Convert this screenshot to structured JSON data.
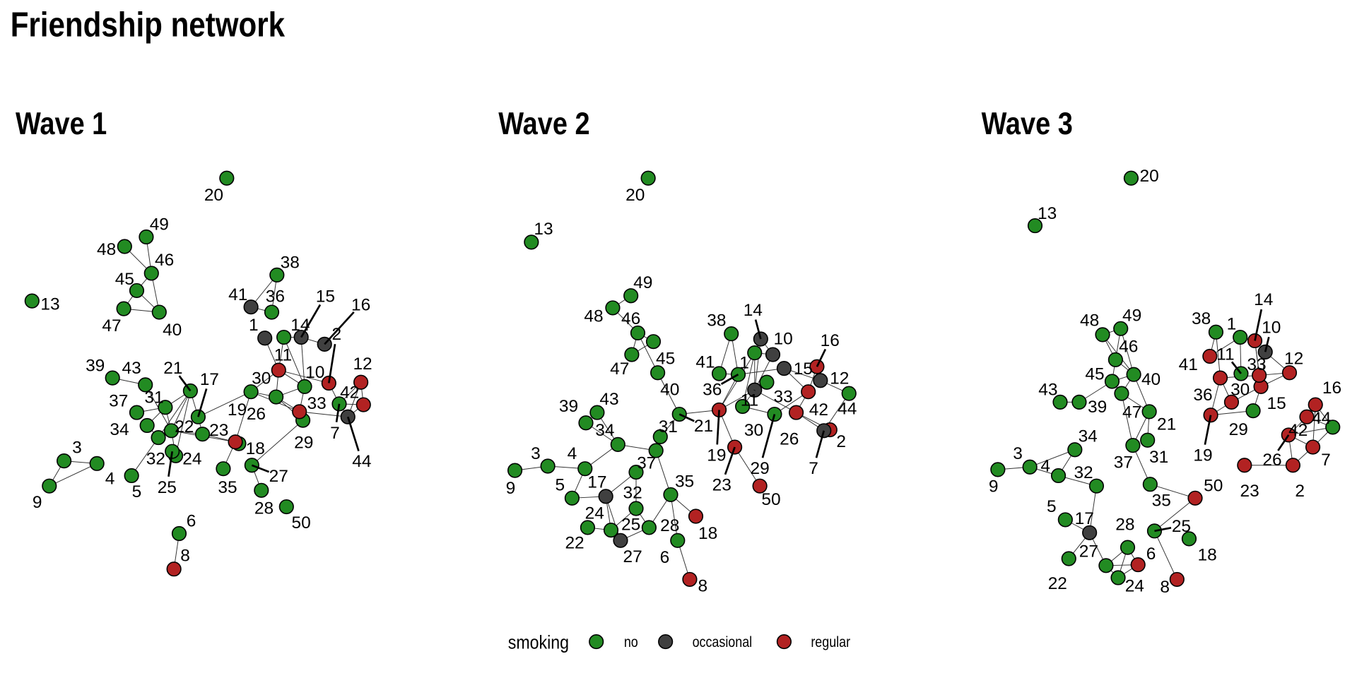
{
  "title": "Friendship network",
  "colors": {
    "no": "#228B22",
    "occasional": "#404040",
    "regular": "#B22222"
  },
  "legend": {
    "title": "smoking",
    "items": [
      {
        "key": "no",
        "label": "no"
      },
      {
        "key": "occasional",
        "label": "occasional"
      },
      {
        "key": "regular",
        "label": "regular"
      }
    ]
  },
  "waves": [
    {
      "title": "Wave 1",
      "nodes": {
        "1": "occasional",
        "2": "regular",
        "3": "no",
        "4": "no",
        "5": "no",
        "6": "no",
        "7": "no",
        "8": "regular",
        "9": "no",
        "10": "no",
        "11": "regular",
        "12": "regular",
        "13": "no",
        "14": "no",
        "15": "occasional",
        "16": "occasional",
        "17": "no",
        "18": "no",
        "19": "regular",
        "20": "no",
        "21": "no",
        "22": "no",
        "23": "no",
        "24": "no",
        "25": "no",
        "26": "no",
        "27": "no",
        "28": "no",
        "29": "no",
        "30": "no",
        "31": "no",
        "32": "no",
        "33": "regular",
        "34": "no",
        "35": "no",
        "36": "no",
        "37": "no",
        "38": "no",
        "39": "no",
        "40": "no",
        "41": "occasional",
        "42": "regular",
        "43": "no",
        "44": "occasional",
        "45": "no",
        "46": "no",
        "47": "no",
        "48": "no",
        "49": "no",
        "50": "no"
      },
      "edges": [
        [
          48,
          46
        ],
        [
          49,
          46
        ],
        [
          46,
          45
        ],
        [
          46,
          40
        ],
        [
          45,
          47
        ],
        [
          45,
          40
        ],
        [
          47,
          40
        ],
        [
          38,
          41
        ],
        [
          38,
          36
        ],
        [
          41,
          36
        ],
        [
          1,
          11
        ],
        [
          14,
          11
        ],
        [
          14,
          10
        ],
        [
          14,
          15
        ],
        [
          15,
          16
        ],
        [
          15,
          10
        ],
        [
          11,
          10
        ],
        [
          11,
          30
        ],
        [
          11,
          26
        ],
        [
          11,
          2
        ],
        [
          10,
          26
        ],
        [
          10,
          33
        ],
        [
          2,
          7
        ],
        [
          7,
          12
        ],
        [
          7,
          42
        ],
        [
          12,
          42
        ],
        [
          42,
          44
        ],
        [
          7,
          44
        ],
        [
          33,
          44
        ],
        [
          30,
          26
        ],
        [
          30,
          33
        ],
        [
          26,
          33
        ],
        [
          30,
          19
        ],
        [
          30,
          17
        ],
        [
          26,
          29
        ],
        [
          29,
          27
        ],
        [
          27,
          28
        ],
        [
          19,
          35
        ],
        [
          19,
          23
        ],
        [
          23,
          17
        ],
        [
          22,
          23
        ],
        [
          22,
          19
        ],
        [
          17,
          21
        ],
        [
          21,
          22
        ],
        [
          21,
          31
        ],
        [
          21,
          32
        ],
        [
          21,
          24
        ],
        [
          31,
          37
        ],
        [
          31,
          34
        ],
        [
          31,
          22
        ],
        [
          34,
          32
        ],
        [
          32,
          22
        ],
        [
          22,
          24
        ],
        [
          39,
          43
        ],
        [
          43,
          22
        ],
        [
          32,
          5
        ],
        [
          3,
          4
        ],
        [
          3,
          9
        ],
        [
          9,
          4
        ],
        [
          6,
          8
        ],
        [
          12,
          44
        ]
      ]
    },
    {
      "title": "Wave 2",
      "nodes": {
        "1": "no",
        "2": "regular",
        "3": "no",
        "4": "no",
        "5": "no",
        "6": "no",
        "7": "occasional",
        "8": "regular",
        "9": "no",
        "10": "occasional",
        "11": "occasional",
        "12": "occasional",
        "13": "no",
        "14": "occasional",
        "15": "occasional",
        "16": "regular",
        "17": "occasional",
        "18": "regular",
        "19": "regular",
        "20": "no",
        "21": "no",
        "22": "no",
        "23": "regular",
        "24": "no",
        "25": "no",
        "26": "regular",
        "27": "occasional",
        "28": "no",
        "29": "no",
        "30": "no",
        "31": "no",
        "32": "no",
        "33": "no",
        "34": "no",
        "35": "no",
        "36": "no",
        "37": "no",
        "38": "no",
        "39": "no",
        "40": "no",
        "41": "no",
        "42": "regular",
        "43": "no",
        "44": "no",
        "45": "no",
        "46": "no",
        "47": "no",
        "48": "no",
        "49": "no",
        "50": "regular"
      },
      "edges": [
        [
          48,
          46
        ],
        [
          48,
          49
        ],
        [
          46,
          47
        ],
        [
          46,
          45
        ],
        [
          47,
          45
        ],
        [
          46,
          40
        ],
        [
          40,
          21
        ],
        [
          21,
          19
        ],
        [
          21,
          31
        ],
        [
          31,
          37
        ],
        [
          37,
          34
        ],
        [
          34,
          4
        ],
        [
          43,
          34
        ],
        [
          39,
          34
        ],
        [
          4,
          3
        ],
        [
          3,
          9
        ],
        [
          4,
          5
        ],
        [
          5,
          17
        ],
        [
          17,
          32
        ],
        [
          17,
          24
        ],
        [
          22,
          24
        ],
        [
          17,
          27
        ],
        [
          24,
          25
        ],
        [
          25,
          32
        ],
        [
          25,
          28
        ],
        [
          27,
          28
        ],
        [
          28,
          35
        ],
        [
          35,
          37
        ],
        [
          35,
          18
        ],
        [
          35,
          6
        ],
        [
          6,
          8
        ],
        [
          38,
          41
        ],
        [
          38,
          36
        ],
        [
          41,
          36
        ],
        [
          36,
          19
        ],
        [
          1,
          19
        ],
        [
          1,
          11
        ],
        [
          14,
          10
        ],
        [
          1,
          10
        ],
        [
          11,
          10
        ],
        [
          11,
          33
        ],
        [
          11,
          19
        ],
        [
          11,
          30
        ],
        [
          30,
          29
        ],
        [
          11,
          26
        ],
        [
          36,
          15
        ],
        [
          15,
          42
        ],
        [
          15,
          12
        ],
        [
          16,
          42
        ],
        [
          16,
          12
        ],
        [
          12,
          44
        ],
        [
          44,
          7
        ],
        [
          42,
          26
        ],
        [
          26,
          7
        ],
        [
          26,
          2
        ],
        [
          19,
          23
        ],
        [
          23,
          50
        ],
        [
          29,
          42
        ],
        [
          14,
          11
        ],
        [
          1,
          30
        ]
      ]
    },
    {
      "title": "Wave 3",
      "nodes": {
        "1": "no",
        "2": "regular",
        "3": "no",
        "4": "no",
        "5": "no",
        "6": "regular",
        "7": "regular",
        "8": "regular",
        "9": "no",
        "10": "occasional",
        "11": "no",
        "12": "regular",
        "13": "no",
        "14": "regular",
        "15": "regular",
        "16": "regular",
        "17": "occasional",
        "18": "no",
        "19": "regular",
        "20": "no",
        "21": "no",
        "22": "no",
        "23": "regular",
        "24": "no",
        "25": "no",
        "26": "regular",
        "27": "no",
        "28": "no",
        "29": "no",
        "30": "regular",
        "31": "no",
        "32": "no",
        "33": "regular",
        "34": "no",
        "35": "no",
        "36": "regular",
        "37": "no",
        "38": "no",
        "39": "no",
        "40": "no",
        "41": "regular",
        "42": "regular",
        "43": "no",
        "44": "no",
        "45": "no",
        "46": "no",
        "47": "no",
        "48": "no",
        "49": "no",
        "50": "regular"
      },
      "edges": [
        [
          48,
          49
        ],
        [
          48,
          46
        ],
        [
          48,
          40
        ],
        [
          49,
          46
        ],
        [
          49,
          40
        ],
        [
          46,
          45
        ],
        [
          46,
          40
        ],
        [
          45,
          40
        ],
        [
          45,
          47
        ],
        [
          45,
          39
        ],
        [
          39,
          43
        ],
        [
          47,
          40
        ],
        [
          47,
          21
        ],
        [
          47,
          37
        ],
        [
          40,
          21
        ],
        [
          21,
          31
        ],
        [
          21,
          37
        ],
        [
          37,
          35
        ],
        [
          35,
          50
        ],
        [
          50,
          25
        ],
        [
          25,
          8
        ],
        [
          3,
          9
        ],
        [
          3,
          34
        ],
        [
          34,
          4
        ],
        [
          3,
          4
        ],
        [
          4,
          32
        ],
        [
          32,
          17
        ],
        [
          5,
          17
        ],
        [
          17,
          22
        ],
        [
          17,
          27
        ],
        [
          27,
          28
        ],
        [
          27,
          6
        ],
        [
          27,
          24
        ],
        [
          28,
          24
        ],
        [
          28,
          6
        ],
        [
          24,
          6
        ],
        [
          38,
          41
        ],
        [
          38,
          36
        ],
        [
          41,
          1
        ],
        [
          1,
          11
        ],
        [
          1,
          14
        ],
        [
          14,
          33
        ],
        [
          14,
          15
        ],
        [
          10,
          12
        ],
        [
          10,
          15
        ],
        [
          36,
          30
        ],
        [
          36,
          19
        ],
        [
          36,
          33
        ],
        [
          19,
          30
        ],
        [
          19,
          29
        ],
        [
          30,
          15
        ],
        [
          29,
          15
        ],
        [
          33,
          12
        ],
        [
          15,
          12
        ],
        [
          33,
          15
        ],
        [
          16,
          42
        ],
        [
          16,
          7
        ],
        [
          42,
          44
        ],
        [
          42,
          26
        ],
        [
          26,
          44
        ],
        [
          26,
          7
        ],
        [
          26,
          2
        ],
        [
          7,
          2
        ],
        [
          7,
          44
        ],
        [
          23,
          2
        ],
        [
          16,
          44
        ]
      ]
    }
  ]
}
